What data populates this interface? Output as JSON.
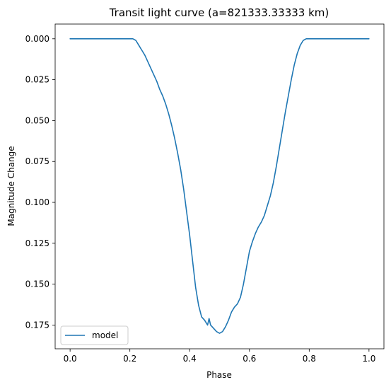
{
  "chart_data": {
    "type": "line",
    "title": "Transit light curve (a=821333.33333 km)",
    "xlabel": "Phase",
    "ylabel": "Magnitude Change",
    "xlim": [
      -0.05,
      1.05
    ],
    "ylim": [
      0.1895,
      -0.009
    ],
    "y_inverted": true,
    "xticks": [
      0.0,
      0.2,
      0.4,
      0.6,
      0.8,
      1.0
    ],
    "xtick_labels": [
      "0.0",
      "0.2",
      "0.4",
      "0.6",
      "0.8",
      "1.0"
    ],
    "yticks": [
      0.0,
      0.025,
      0.05,
      0.075,
      0.1,
      0.125,
      0.15,
      0.175
    ],
    "ytick_labels": [
      "0.000",
      "0.025",
      "0.050",
      "0.075",
      "0.100",
      "0.125",
      "0.150",
      "0.175"
    ],
    "grid": false,
    "legend_position": "lower-left",
    "series": [
      {
        "name": "model",
        "color": "#1f77b4",
        "x": [
          0.0,
          0.1,
          0.2,
          0.21,
          0.22,
          0.23,
          0.24,
          0.25,
          0.26,
          0.27,
          0.28,
          0.29,
          0.3,
          0.31,
          0.32,
          0.33,
          0.34,
          0.35,
          0.36,
          0.37,
          0.38,
          0.39,
          0.4,
          0.41,
          0.42,
          0.43,
          0.44,
          0.45,
          0.46,
          0.465,
          0.47,
          0.48,
          0.49,
          0.5,
          0.51,
          0.52,
          0.53,
          0.54,
          0.55,
          0.56,
          0.57,
          0.58,
          0.59,
          0.6,
          0.61,
          0.62,
          0.63,
          0.64,
          0.65,
          0.66,
          0.67,
          0.68,
          0.69,
          0.7,
          0.71,
          0.72,
          0.73,
          0.74,
          0.75,
          0.76,
          0.77,
          0.78,
          0.79,
          0.8,
          0.9,
          1.0
        ],
        "y": [
          0.0,
          0.0,
          0.0,
          0.0,
          0.001,
          0.004,
          0.007,
          0.01,
          0.014,
          0.018,
          0.022,
          0.026,
          0.031,
          0.035,
          0.04,
          0.046,
          0.053,
          0.061,
          0.07,
          0.08,
          0.092,
          0.106,
          0.12,
          0.136,
          0.152,
          0.163,
          0.17,
          0.172,
          0.175,
          0.171,
          0.175,
          0.177,
          0.179,
          0.18,
          0.179,
          0.176,
          0.172,
          0.167,
          0.164,
          0.162,
          0.158,
          0.15,
          0.14,
          0.13,
          0.124,
          0.119,
          0.115,
          0.112,
          0.108,
          0.102,
          0.096,
          0.088,
          0.078,
          0.067,
          0.056,
          0.045,
          0.035,
          0.025,
          0.016,
          0.009,
          0.004,
          0.001,
          0.0,
          0.0,
          0.0,
          0.0
        ]
      }
    ]
  }
}
